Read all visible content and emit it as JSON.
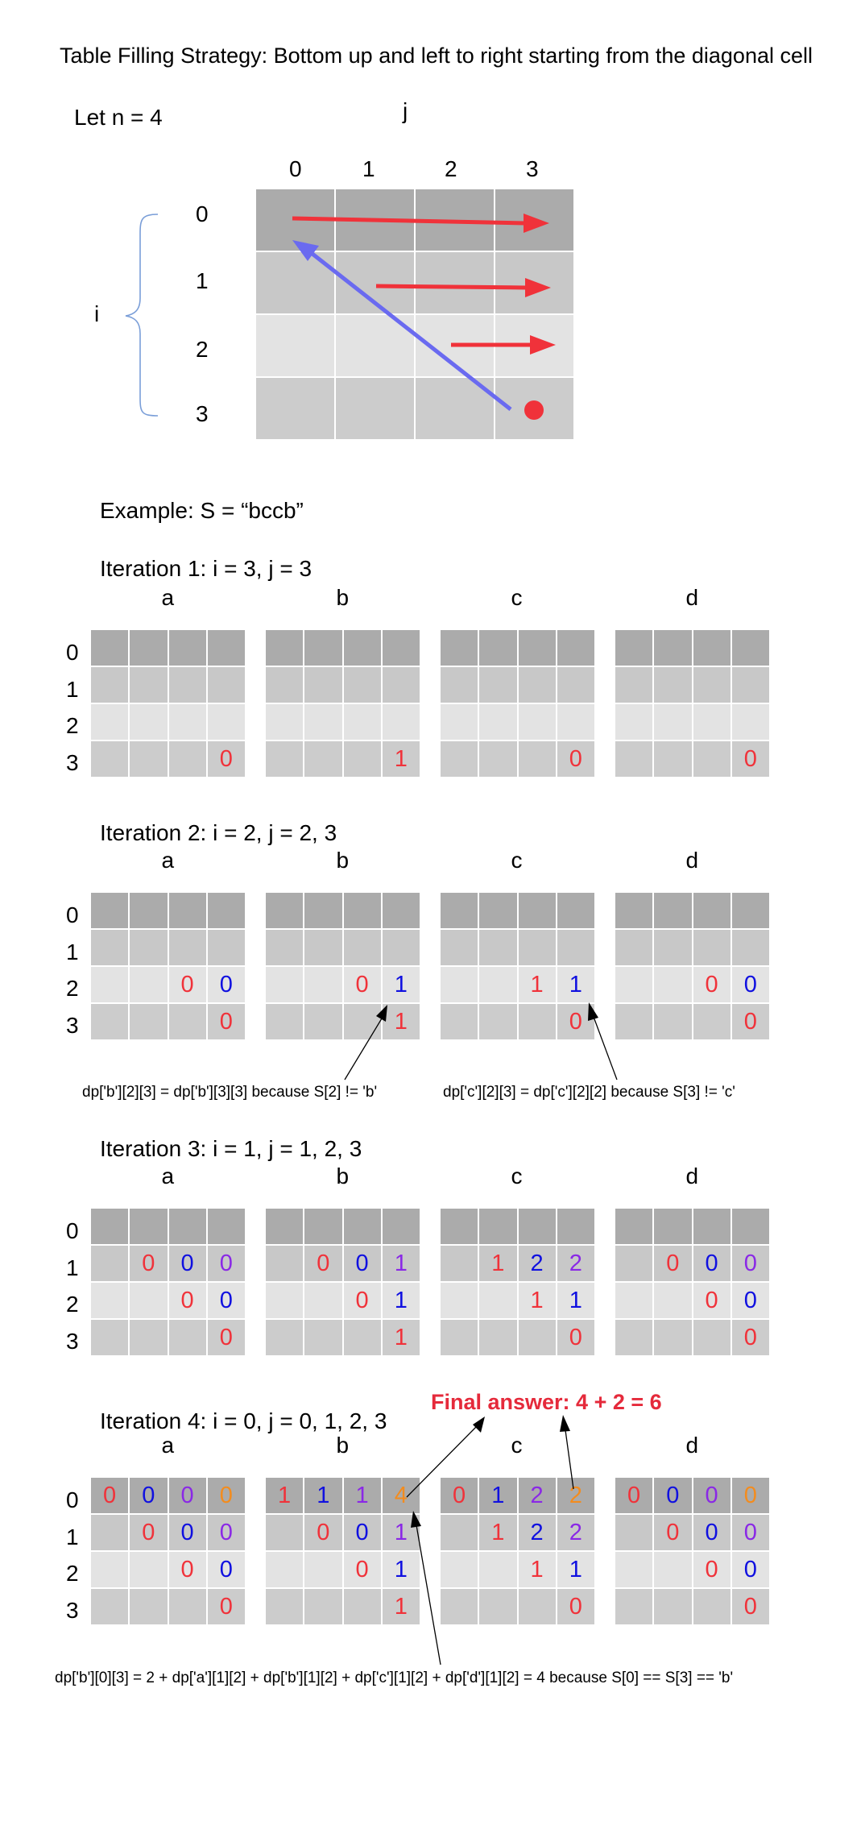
{
  "title": "Table Filling Strategy: Bottom up and left to right starting from the diagonal cell",
  "let_n": "Let n = 4",
  "j_label": "j",
  "i_label": "i",
  "col_indices": [
    "0",
    "1",
    "2",
    "3"
  ],
  "row_indices": [
    "0",
    "1",
    "2",
    "3"
  ],
  "example": "Example: S = “bccb”",
  "table_labels": [
    "a",
    "b",
    "c",
    "d"
  ],
  "final_answer": "Final answer: 4 + 2 = 6",
  "colors": {
    "red": "#f0323a",
    "blue": "#1010e0",
    "purple": "#8a28e6",
    "orange": "#f38c1e",
    "diag_arrow": "#6a6af0",
    "brace": "#7a9ed8",
    "final": "#e52a3b"
  },
  "iterations": [
    {
      "label": "Iteration 1: i = 3, j = 3",
      "tables": [
        [
          [
            "",
            "",
            "",
            ""
          ],
          [
            "",
            "",
            "",
            ""
          ],
          [
            "",
            "",
            "",
            ""
          ],
          [
            "",
            "",
            "",
            "0"
          ]
        ],
        [
          [
            "",
            "",
            "",
            ""
          ],
          [
            "",
            "",
            "",
            ""
          ],
          [
            "",
            "",
            "",
            ""
          ],
          [
            "",
            "",
            "",
            "1"
          ]
        ],
        [
          [
            "",
            "",
            "",
            ""
          ],
          [
            "",
            "",
            "",
            ""
          ],
          [
            "",
            "",
            "",
            ""
          ],
          [
            "",
            "",
            "",
            "0"
          ]
        ],
        [
          [
            "",
            "",
            "",
            ""
          ],
          [
            "",
            "",
            "",
            ""
          ],
          [
            "",
            "",
            "",
            ""
          ],
          [
            "",
            "",
            "",
            "0"
          ]
        ]
      ]
    },
    {
      "label": "Iteration 2: i = 2, j = 2, 3",
      "tables": [
        [
          [
            "",
            "",
            "",
            ""
          ],
          [
            "",
            "",
            "",
            ""
          ],
          [
            "",
            "",
            "0",
            "0"
          ],
          [
            "",
            "",
            "",
            "0"
          ]
        ],
        [
          [
            "",
            "",
            "",
            ""
          ],
          [
            "",
            "",
            "",
            ""
          ],
          [
            "",
            "",
            "0",
            "1"
          ],
          [
            "",
            "",
            "",
            "1"
          ]
        ],
        [
          [
            "",
            "",
            "",
            ""
          ],
          [
            "",
            "",
            "",
            ""
          ],
          [
            "",
            "",
            "1",
            "1"
          ],
          [
            "",
            "",
            "",
            "0"
          ]
        ],
        [
          [
            "",
            "",
            "",
            ""
          ],
          [
            "",
            "",
            "",
            ""
          ],
          [
            "",
            "",
            "0",
            "0"
          ],
          [
            "",
            "",
            "",
            "0"
          ]
        ]
      ],
      "notes": [
        "dp['b'][2][3] = dp['b'][3][3] because S[2] != 'b'",
        "dp['c'][2][3] = dp['c'][2][2] because S[3] != 'c'"
      ]
    },
    {
      "label": "Iteration 3: i = 1, j = 1, 2, 3",
      "tables": [
        [
          [
            "",
            "",
            "",
            ""
          ],
          [
            "",
            "0",
            "0",
            "0"
          ],
          [
            "",
            "",
            "0",
            "0"
          ],
          [
            "",
            "",
            "",
            "0"
          ]
        ],
        [
          [
            "",
            "",
            "",
            ""
          ],
          [
            "",
            "0",
            "0",
            "1"
          ],
          [
            "",
            "",
            "0",
            "1"
          ],
          [
            "",
            "",
            "",
            "1"
          ]
        ],
        [
          [
            "",
            "",
            "",
            ""
          ],
          [
            "",
            "1",
            "2",
            "2"
          ],
          [
            "",
            "",
            "1",
            "1"
          ],
          [
            "",
            "",
            "",
            "0"
          ]
        ],
        [
          [
            "",
            "",
            "",
            ""
          ],
          [
            "",
            "0",
            "0",
            "0"
          ],
          [
            "",
            "",
            "0",
            "0"
          ],
          [
            "",
            "",
            "",
            "0"
          ]
        ]
      ]
    },
    {
      "label": "Iteration 4: i = 0, j = 0, 1, 2, 3",
      "tables": [
        [
          [
            "0",
            "0",
            "0",
            "0"
          ],
          [
            "",
            "0",
            "0",
            "0"
          ],
          [
            "",
            "",
            "0",
            "0"
          ],
          [
            "",
            "",
            "",
            "0"
          ]
        ],
        [
          [
            "1",
            "1",
            "1",
            "4"
          ],
          [
            "",
            "0",
            "0",
            "1"
          ],
          [
            "",
            "",
            "0",
            "1"
          ],
          [
            "",
            "",
            "",
            "1"
          ]
        ],
        [
          [
            "0",
            "1",
            "2",
            "2"
          ],
          [
            "",
            "1",
            "2",
            "2"
          ],
          [
            "",
            "",
            "1",
            "1"
          ],
          [
            "",
            "",
            "",
            "0"
          ]
        ],
        [
          [
            "0",
            "0",
            "0",
            "0"
          ],
          [
            "",
            "0",
            "0",
            "0"
          ],
          [
            "",
            "",
            "0",
            "0"
          ],
          [
            "",
            "",
            "",
            "0"
          ]
        ]
      ],
      "notes": [
        "dp['b'][0][3] = 2 + dp['a'][1][2] + dp['b'][1][2] + dp['c'][1][2] + dp['d'][1][2] = 4 because S[0] == S[3] == 'b'"
      ]
    }
  ]
}
